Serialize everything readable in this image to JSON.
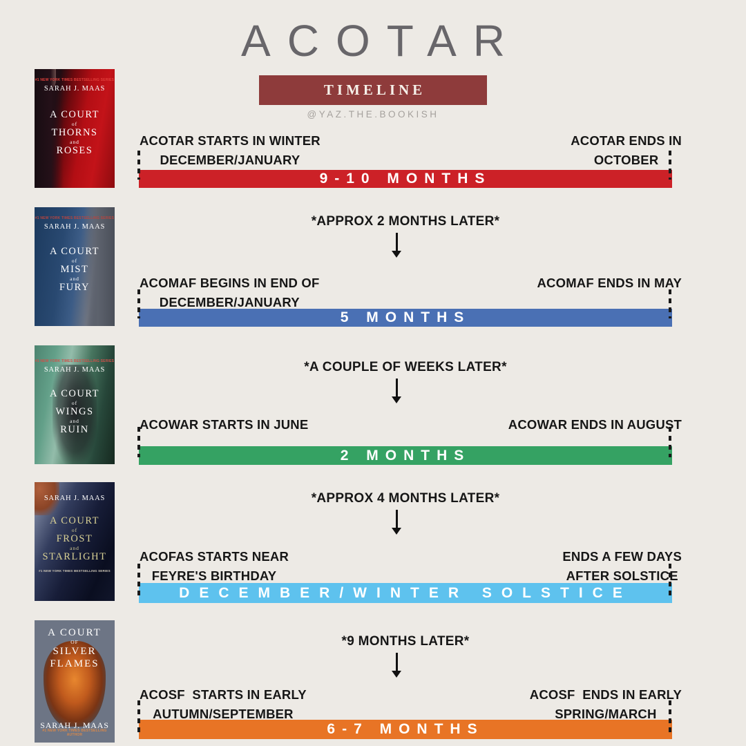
{
  "header": {
    "title": "ACOTAR",
    "badge": "TIMELINE",
    "handle": "@YAZ.THE.BOOKISH"
  },
  "colors": {
    "background": "#edeae5",
    "title_text": "#68666a",
    "badge_bg": "#8e3b3b",
    "badge_text": "#f6f1ea",
    "handle_text": "#a5a19d",
    "label_text": "#161616",
    "bar_text": "#ffffff",
    "bar_acotar": "#cc2127",
    "bar_acomaf": "#4a70b4",
    "bar_acowar": "#35a263",
    "bar_acofas": "#5ec2ee",
    "bar_acosf": "#e87425"
  },
  "covers": [
    {
      "book": "ACOTAR",
      "series_note": "#1 NEW YORK TIMES BESTSELLING SERIES",
      "author": "SARAH J. MAAS",
      "title": {
        "l1": "A COURT",
        "c1": "of",
        "l2": "THORNS",
        "c2": "and",
        "l3": "ROSES"
      }
    },
    {
      "book": "ACOMAF",
      "series_note": "#1 NEW YORK TIMES BESTSELLING SERIES",
      "author": "SARAH J. MAAS",
      "title": {
        "l1": "A COURT",
        "c1": "of",
        "l2": "MIST",
        "c2": "and",
        "l3": "FURY"
      }
    },
    {
      "book": "ACOWAR",
      "series_note": "#1 NEW YORK TIMES BESTSELLING SERIES",
      "author": "SARAH J. MAAS",
      "title": {
        "l1": "A COURT",
        "c1": "of",
        "l2": "WINGS",
        "c2": "and",
        "l3": "RUIN"
      }
    },
    {
      "book": "ACOFAS",
      "series_note": "#1 NEW YORK TIMES BESTSELLING SERIES",
      "author": "SARAH J. MAAS",
      "title": {
        "l1": "A COURT",
        "c1": "of",
        "l2": "FROST",
        "c2": "and",
        "l3": "STARLIGHT"
      }
    },
    {
      "book": "ACOSF",
      "series_note": "#1 NEW YORK TIMES BESTSELLING AUTHOR",
      "author": "SARAH J. MAAS",
      "title": {
        "l1": "A COURT",
        "c1": "OF",
        "l2": "SILVER",
        "c2": null,
        "l3": "FLAMES"
      }
    }
  ],
  "timeline": [
    {
      "book": "ACOTAR",
      "gap": null,
      "start": [
        "ACOTAR STARTS IN WINTER",
        "DECEMBER/JANUARY"
      ],
      "end": [
        "ACOTAR ENDS IN",
        "OCTOBER"
      ],
      "duration": "9-10 MONTHS"
    },
    {
      "book": "ACOMAF",
      "gap": "*APPROX 2 MONTHS LATER*",
      "start": [
        "ACOMAF BEGINS IN END OF",
        "DECEMBER/JANUARY"
      ],
      "end": [
        "ACOMAF ENDS IN MAY",
        null
      ],
      "duration": "5 MONTHS"
    },
    {
      "book": "ACOWAR",
      "gap": "*A COUPLE OF WEEKS LATER*",
      "start": [
        "ACOWAR STARTS IN JUNE",
        null
      ],
      "end": [
        "ACOWAR ENDS IN AUGUST",
        null
      ],
      "duration": "2 MONTHS"
    },
    {
      "book": "ACOFAS",
      "gap": "*APPROX 4 MONTHS LATER*",
      "start": [
        "ACOFAS STARTS NEAR",
        "FEYRE'S BIRTHDAY"
      ],
      "end": [
        "ENDS A FEW DAYS",
        "AFTER SOLSTICE"
      ],
      "duration": "DECEMBER/WINTER SOLSTICE"
    },
    {
      "book": "ACOSF",
      "gap": "*9 MONTHS LATER*",
      "start": [
        "ACOSF  STARTS IN EARLY",
        "AUTUMN/SEPTEMBER"
      ],
      "end": [
        "ACOSF  ENDS IN EARLY",
        "SPRING/MARCH"
      ],
      "duration": "6-7 MONTHS"
    }
  ]
}
